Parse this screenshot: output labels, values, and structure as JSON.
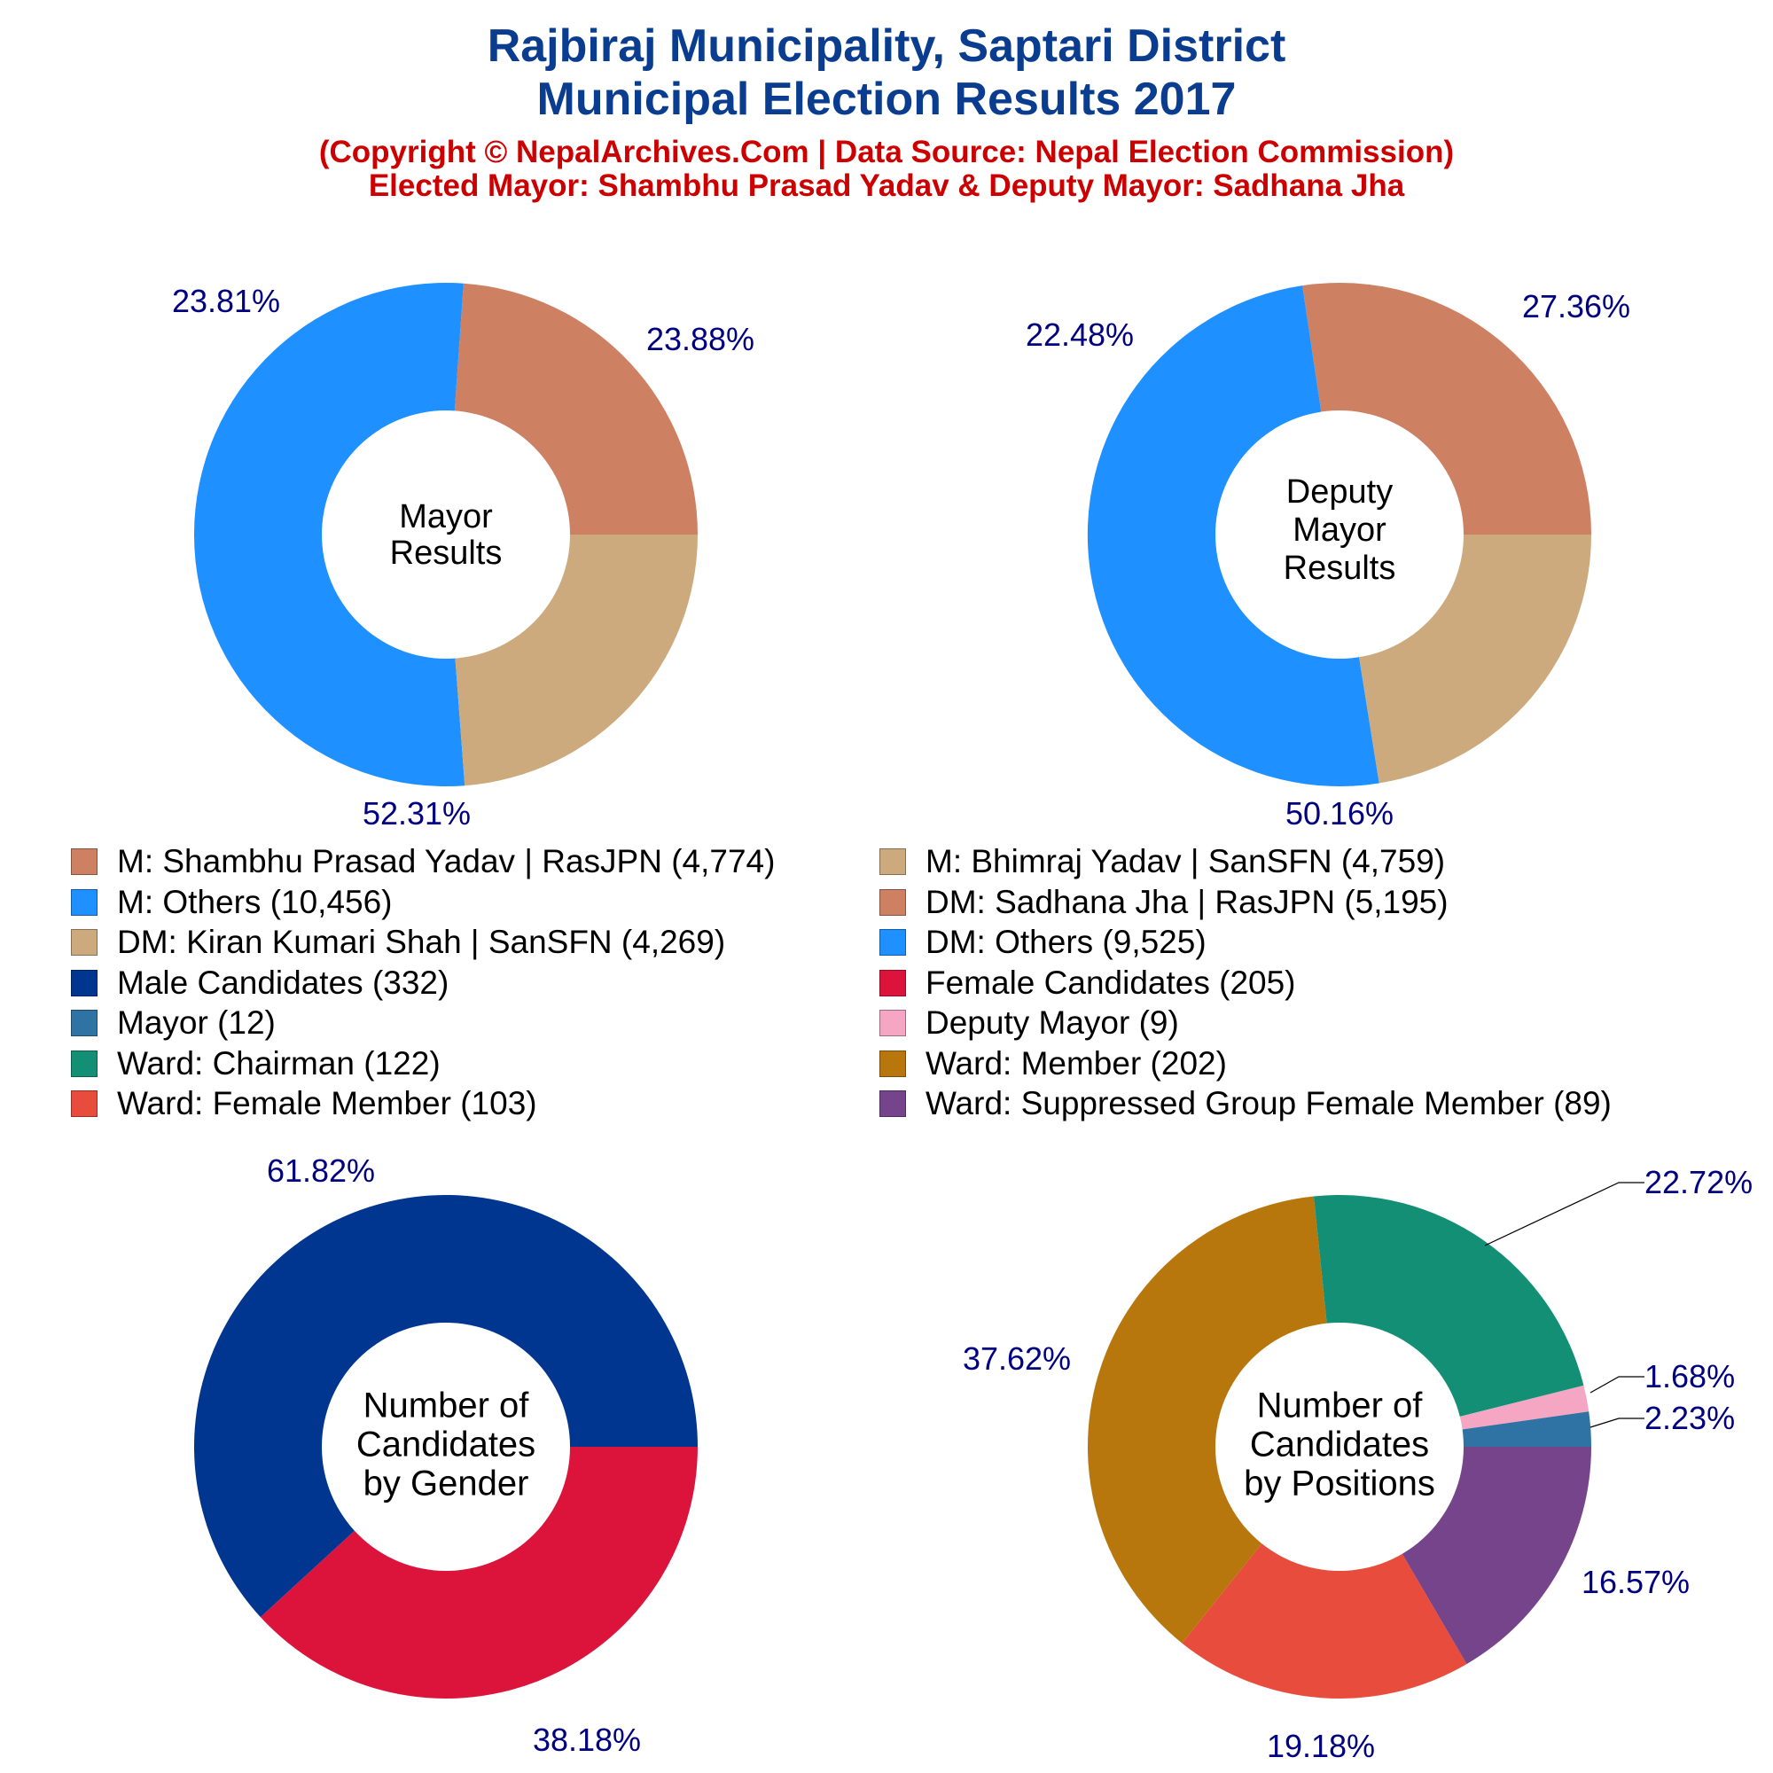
{
  "header": {
    "title_line1": "Rajbiraj Municipality, Saptari District",
    "title_line2": "Municipal Election Results 2017",
    "subtitle_line1": "(Copyright © NepalArchives.Com | Data Source: Nepal Election Commission)",
    "subtitle_line2": "Elected Mayor: Shambhu Prasad Yadav & Deputy Mayor: Sadhana Jha"
  },
  "colors": {
    "title": "#0a3d8f",
    "subtitle": "#cc0000",
    "percent_label": "#000080"
  },
  "legend": {
    "items": [
      {
        "label": "M: Shambhu Prasad Yadav | RasJPN (4,774)",
        "color": "#cd8162"
      },
      {
        "label": "M: Bhimraj Yadav | SanSFN (4,759)",
        "color": "#cdaa7d"
      },
      {
        "label": "M: Others (10,456)",
        "color": "#1e90ff"
      },
      {
        "label": "DM: Sadhana Jha | RasJPN (5,195)",
        "color": "#cd8162"
      },
      {
        "label": "DM: Kiran Kumari Shah | SanSFN (4,269)",
        "color": "#cdaa7d"
      },
      {
        "label": "DM: Others (9,525)",
        "color": "#1e90ff"
      },
      {
        "label": "Male Candidates (332)",
        "color": "#00368f"
      },
      {
        "label": "Female Candidates (205)",
        "color": "#dc143c"
      },
      {
        "label": "Mayor (12)",
        "color": "#2f73a5"
      },
      {
        "label": "Deputy Mayor (9)",
        "color": "#f4a6c2"
      },
      {
        "label": "Ward: Chairman (122)",
        "color": "#138f75"
      },
      {
        "label": "Ward: Member (202)",
        "color": "#b8770c"
      },
      {
        "label": "Ward: Female Member (103)",
        "color": "#e74c3c"
      },
      {
        "label": "Ward: Suppressed Group Female Member (89)",
        "color": "#76448a"
      }
    ]
  },
  "chart_data": [
    {
      "type": "pie",
      "center_label": [
        "Mayor",
        "Results"
      ],
      "slices": [
        {
          "name": "M: Shambhu Prasad Yadav | RasJPN",
          "value": 4774,
          "label": "23.88%",
          "color": "#cd8162"
        },
        {
          "name": "M: Others",
          "value": 10456,
          "label": "52.31%",
          "color": "#1e90ff"
        },
        {
          "name": "M: Bhimraj Yadav | SanSFN",
          "value": 4759,
          "label": "23.81%",
          "color": "#cdaa7d"
        }
      ]
    },
    {
      "type": "pie",
      "center_label": [
        "Deputy",
        "Mayor",
        "Results"
      ],
      "slices": [
        {
          "name": "DM: Sadhana Jha | RasJPN",
          "value": 5195,
          "label": "27.36%",
          "color": "#cd8162"
        },
        {
          "name": "DM: Others",
          "value": 9525,
          "label": "50.16%",
          "color": "#1e90ff"
        },
        {
          "name": "DM: Kiran Kumari Shah | SanSFN",
          "value": 4269,
          "label": "22.48%",
          "color": "#cdaa7d"
        }
      ]
    },
    {
      "type": "pie",
      "center_label": [
        "Number of",
        "Candidates",
        "by Gender"
      ],
      "slices": [
        {
          "name": "Female Candidates",
          "value": 205,
          "label": "38.18%",
          "color": "#dc143c"
        },
        {
          "name": "Male Candidates",
          "value": 332,
          "label": "61.82%",
          "color": "#00368f"
        }
      ]
    },
    {
      "type": "pie",
      "center_label": [
        "Number of",
        "Candidates",
        "by Positions"
      ],
      "slices": [
        {
          "name": "Ward: Suppressed Group Female Member",
          "value": 89,
          "label": "16.57%",
          "color": "#76448a"
        },
        {
          "name": "Ward: Female Member",
          "value": 103,
          "label": "19.18%",
          "color": "#e74c3c"
        },
        {
          "name": "Ward: Member",
          "value": 202,
          "label": "37.62%",
          "color": "#b8770c"
        },
        {
          "name": "Ward: Chairman",
          "value": 122,
          "label": "22.72%",
          "color": "#138f75"
        },
        {
          "name": "Deputy Mayor",
          "value": 9,
          "label": "1.68%",
          "color": "#f4a6c2"
        },
        {
          "name": "Mayor",
          "value": 12,
          "label": "2.23%",
          "color": "#2f73a5"
        }
      ]
    }
  ]
}
